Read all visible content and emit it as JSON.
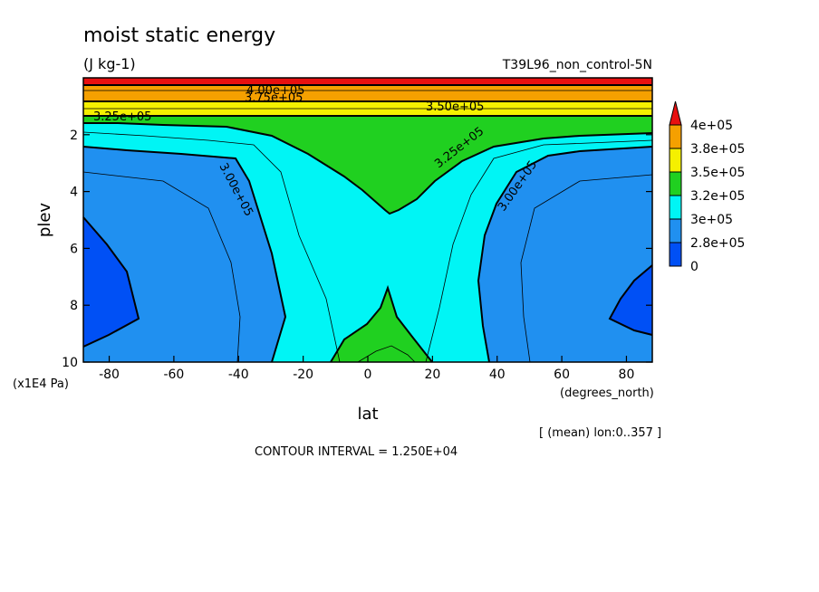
{
  "chart_data": {
    "type": "contour",
    "title": "moist static energy",
    "units": "(J kg-1)",
    "run_label": "T39L96_non_control-5N",
    "xlabel": "lat",
    "x_units": "(degrees_north)",
    "ylabel": "plev",
    "y_units": "(x1E4 Pa)",
    "x_ticks": [
      "-80",
      "-60",
      "-40",
      "-20",
      "0",
      "20",
      "40",
      "60",
      "80"
    ],
    "y_ticks": [
      "2",
      "4",
      "6",
      "8",
      "10"
    ],
    "xlim": [
      -88,
      88
    ],
    "ylim": [
      10,
      0
    ],
    "average_note": "[ (mean) lon:0..357 ]",
    "contour_interval_text": "CONTOUR INTERVAL = 1.250E+04",
    "contour_labels": [
      "4.00e+05",
      "3.75e+05",
      "3.50e+05",
      "3.25e+05",
      "3.00e+05",
      "3.25e+05",
      "3.00e+05"
    ],
    "colorbar": {
      "labels": [
        "4e+05",
        "3.8e+05",
        "3.5e+05",
        "3.2e+05",
        "3e+05",
        "2.8e+05",
        "0"
      ],
      "colors": [
        "#e81010",
        "#f5a000",
        "#f5f000",
        "#20d020",
        "#00f5f5",
        "#2090f0",
        "#0050f5"
      ]
    },
    "grid": false
  }
}
